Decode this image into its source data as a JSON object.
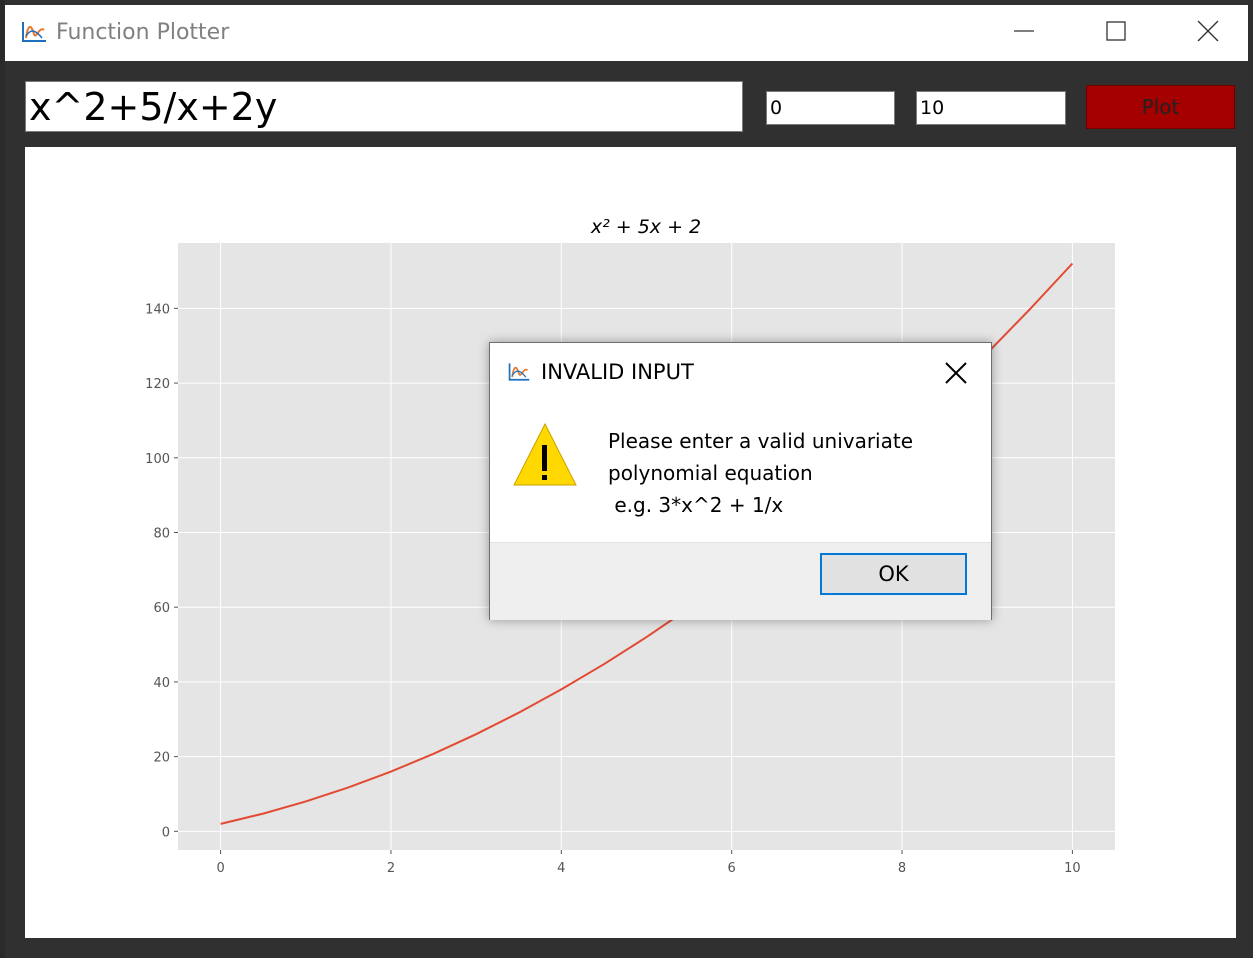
{
  "window": {
    "title": "Function Plotter",
    "icon": "function-plot-icon",
    "minimize_icon": "minimize-icon",
    "maximize_icon": "maximize-icon",
    "close_icon": "close-icon"
  },
  "toolbar": {
    "expression_value": "x^2+5/x+2y",
    "x_min_value": "0",
    "x_max_value": "10",
    "plot_label": "Plot",
    "plot_color": "#a40000"
  },
  "chart_data": {
    "type": "line",
    "title": "x² + 5x + 2",
    "xlabel": "",
    "ylabel": "",
    "xlim": [
      -0.5,
      10.5
    ],
    "ylim": [
      -5,
      157.5
    ],
    "x_ticks": [
      0,
      2,
      4,
      6,
      8,
      10
    ],
    "y_ticks": [
      0,
      20,
      40,
      60,
      80,
      100,
      120,
      140
    ],
    "grid": true,
    "background": "#e5e5e5",
    "series": [
      {
        "color": "#e24a33",
        "x": [
          0,
          0.5,
          1,
          1.5,
          2,
          2.5,
          3,
          3.5,
          4,
          4.5,
          5,
          5.5,
          6,
          6.5,
          7,
          7.5,
          8,
          8.5,
          9,
          9.5,
          10
        ],
        "y": [
          2,
          4.75,
          8,
          11.75,
          16,
          20.75,
          26,
          31.75,
          38,
          44.75,
          52,
          59.75,
          68,
          76.75,
          86,
          95.75,
          106,
          116.75,
          128,
          139.75,
          152
        ]
      }
    ]
  },
  "dialog": {
    "title": "INVALID INPUT",
    "icon": "function-plot-icon",
    "warning_icon": "warning-icon",
    "message": "Please enter a valid univariate\npolynomial equation\n e.g. 3*x^2 + 1/x",
    "ok_label": "OK",
    "close_icon": "close-icon"
  }
}
